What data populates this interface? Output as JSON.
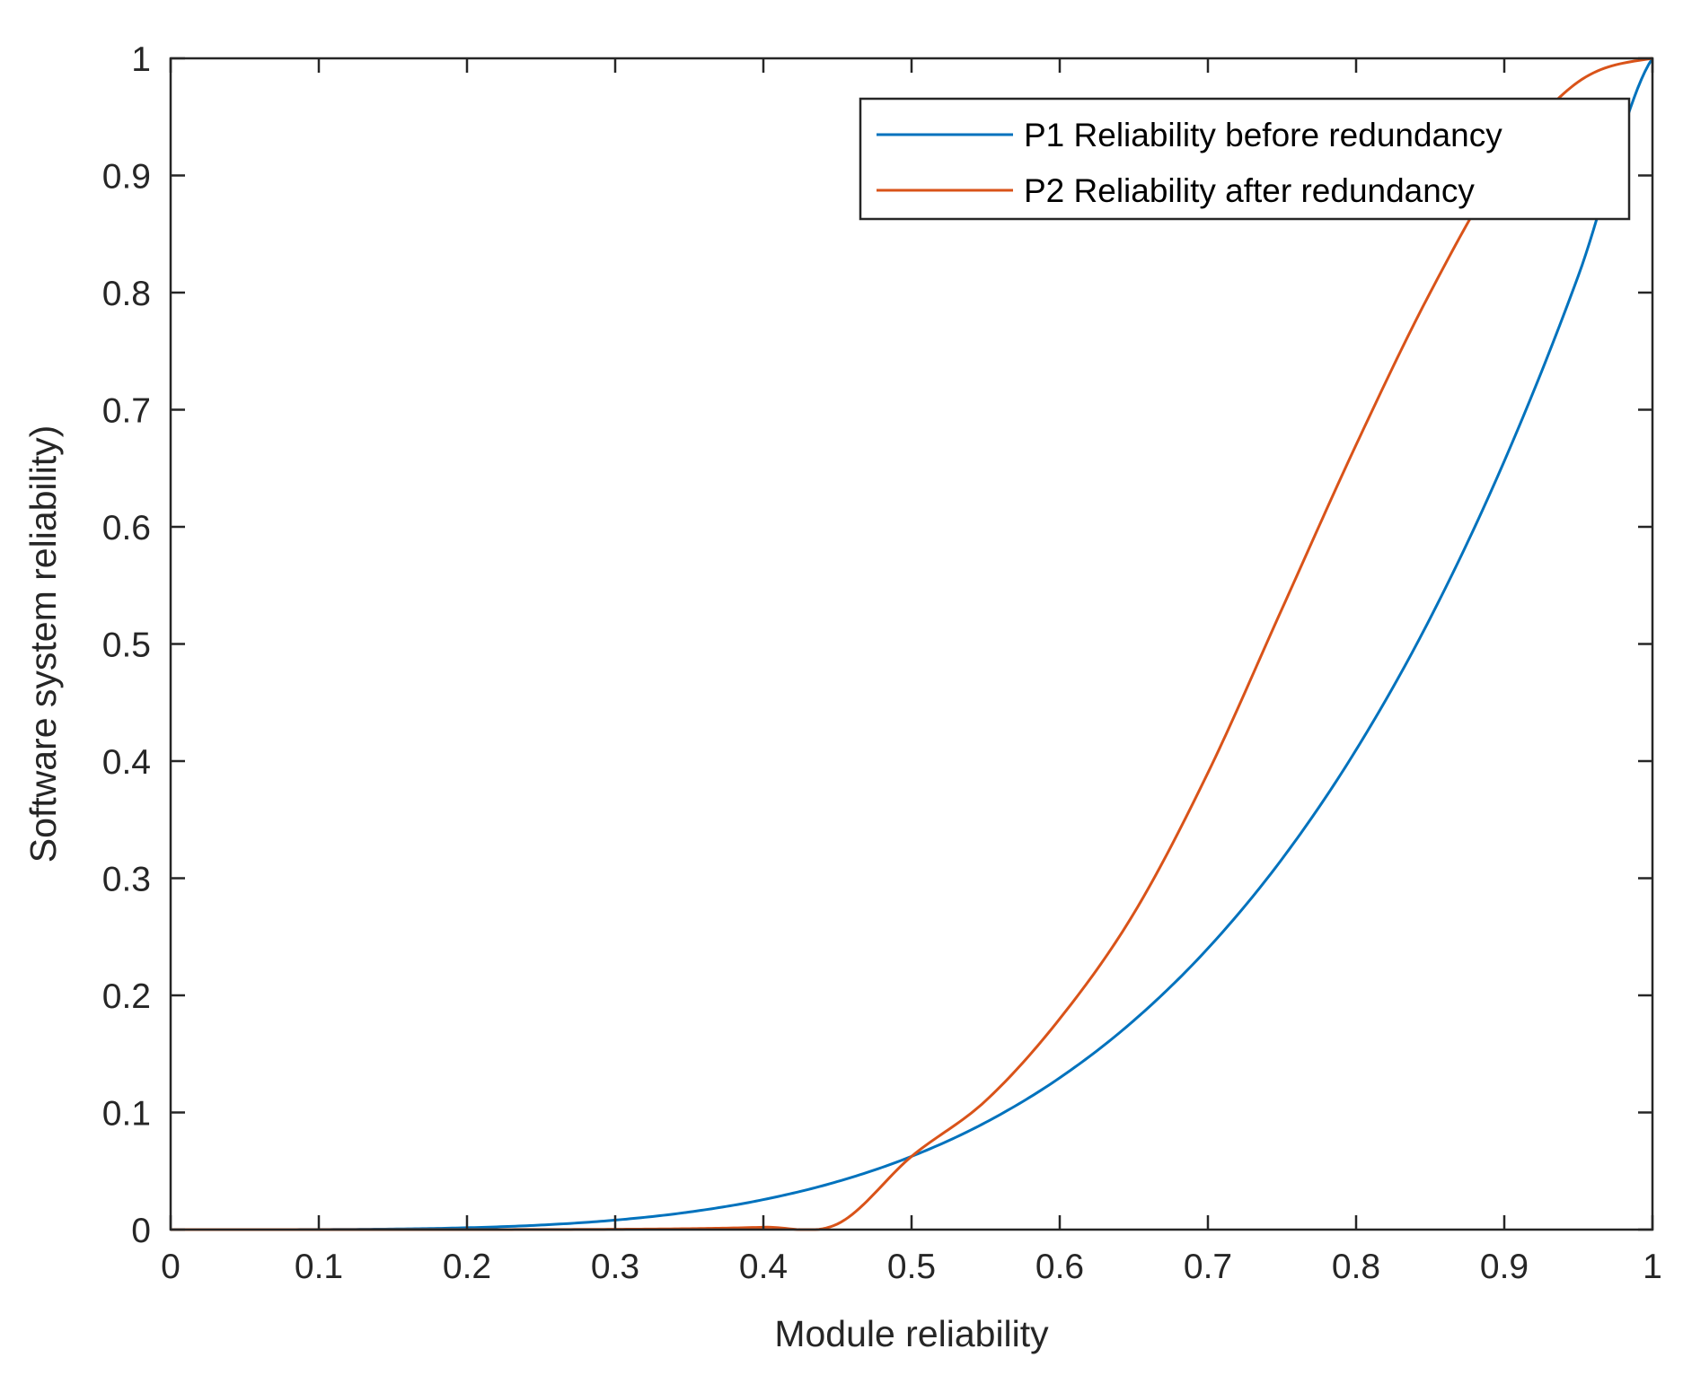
{
  "chart_data": {
    "type": "line",
    "title": "",
    "xlabel": "Module reliability",
    "ylabel": "Software system reliability)",
    "xlim": [
      0,
      1
    ],
    "ylim": [
      0,
      1
    ],
    "xticks": [
      "0",
      "0.1",
      "0.2",
      "0.3",
      "0.4",
      "0.5",
      "0.6",
      "0.7",
      "0.8",
      "0.9",
      "1"
    ],
    "yticks": [
      "0",
      "0.1",
      "0.2",
      "0.3",
      "0.4",
      "0.5",
      "0.6",
      "0.7",
      "0.8",
      "0.9",
      "1"
    ],
    "grid": false,
    "legend_position": "top-right",
    "x": [
      0,
      0.05,
      0.1,
      0.15,
      0.2,
      0.25,
      0.3,
      0.35,
      0.4,
      0.45,
      0.5,
      0.55,
      0.6,
      0.65,
      0.7,
      0.75,
      0.8,
      0.85,
      0.9,
      0.95,
      1
    ],
    "series": [
      {
        "name": "P1 Reliability before redundancy",
        "color": "#0072BD",
        "values": [
          0,
          6.3e-06,
          0.0001,
          0.0005,
          0.0016,
          0.0039,
          0.0081,
          0.015,
          0.0256,
          0.041,
          0.0625,
          0.0915,
          0.1296,
          0.1785,
          0.2401,
          0.3164,
          0.4096,
          0.522,
          0.6561,
          0.8145,
          1
        ]
      },
      {
        "name": "P2 Reliability after redundancy",
        "color": "#D95319",
        "values": [
          0,
          0,
          3e-07,
          3.3e-06,
          2.03e-05,
          8.49e-05,
          0.0002824,
          0.0008048,
          0.0020522,
          0.0048033,
          0.0625,
          0.11,
          0.18,
          0.27,
          0.39,
          0.53,
          0.67,
          0.8,
          0.91,
          0.98,
          1
        ]
      }
    ]
  }
}
